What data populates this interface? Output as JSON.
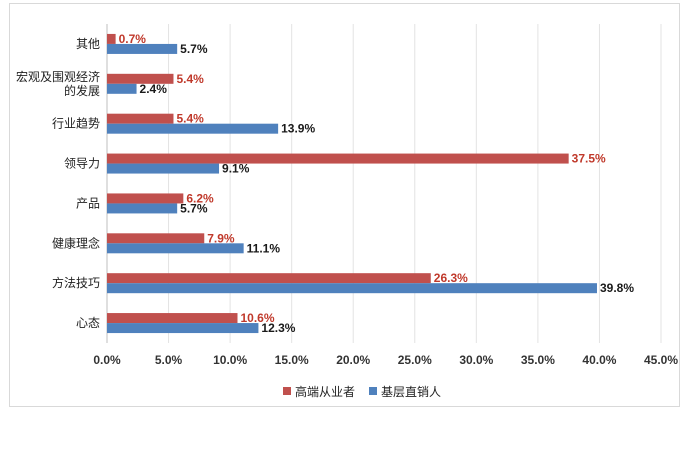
{
  "chart_data": {
    "type": "bar",
    "orientation": "horizontal",
    "categories": [
      "其他",
      "宏观及围观经济的发展",
      "行业趋势",
      "领导力",
      "产品",
      "健康理念",
      "方法技巧",
      "心态"
    ],
    "category_lines": [
      [
        "其他"
      ],
      [
        "宏观及围观经济",
        "的发展"
      ],
      [
        "行业趋势"
      ],
      [
        "领导力"
      ],
      [
        "产品"
      ],
      [
        "健康理念"
      ],
      [
        "方法技巧"
      ],
      [
        "心态"
      ]
    ],
    "series": [
      {
        "name": "高端从业者",
        "color": "#c0504d",
        "label_color": "#c0392b",
        "values": [
          0.7,
          5.4,
          5.4,
          37.5,
          6.2,
          7.9,
          26.3,
          10.6
        ]
      },
      {
        "name": "基层直销人",
        "color": "#4f81bd",
        "label_color": "#1a1a1a",
        "values": [
          5.7,
          2.4,
          13.9,
          9.1,
          5.7,
          11.1,
          39.8,
          12.3
        ]
      }
    ],
    "xlim": [
      0,
      45
    ],
    "xticks": [
      0,
      5,
      10,
      15,
      20,
      25,
      30,
      35,
      40,
      45
    ],
    "value_suffix": "%",
    "grid": "vertical",
    "legend_position": "bottom"
  }
}
